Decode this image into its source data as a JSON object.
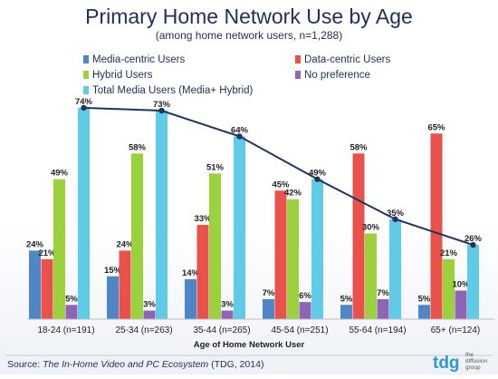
{
  "chart_data": {
    "type": "bar",
    "title": "Primary Home Network Use by Age",
    "subtitle": "(among home network users, n=1,288)",
    "xlabel": "Age of Home Network User",
    "ylabel": "",
    "ylim": [
      0,
      80
    ],
    "grid": false,
    "legend_placement": "top",
    "categories": [
      "18-24 (n=191)",
      "25-34 (n=263)",
      "35-44 (n=265)",
      "45-54 (n=251)",
      "55-64 (n=194)",
      "65+ (n=124)"
    ],
    "series": [
      {
        "name": "Media-centric Users",
        "color": "#4f86c6",
        "values": [
          24,
          15,
          14,
          7,
          5,
          5
        ]
      },
      {
        "name": "Data-centric Users",
        "color": "#e8524a",
        "values": [
          21,
          24,
          33,
          45,
          58,
          65
        ]
      },
      {
        "name": "Hybrid Users",
        "color": "#9bd13c",
        "values": [
          49,
          58,
          51,
          42,
          30,
          21
        ]
      },
      {
        "name": "Total Media Users (Media+ Hybrid)",
        "color": "#5fcbe6",
        "values": [
          74,
          73,
          64,
          49,
          35,
          26
        ]
      },
      {
        "name": "No preference",
        "color": "#8f63b5",
        "values": [
          5,
          3,
          3,
          6,
          7,
          10
        ]
      }
    ],
    "trend_line": {
      "series": "Total Media Users (Media+ Hybrid)",
      "color": "#22345c"
    }
  },
  "source": {
    "prefix": "Source: ",
    "title": "The In-Home Video and PC Ecosystem",
    "suffix": " (TDG, 2014)"
  },
  "logo": {
    "main": "tdg",
    "sub_lines": [
      "the",
      "diffusion",
      "group"
    ]
  }
}
